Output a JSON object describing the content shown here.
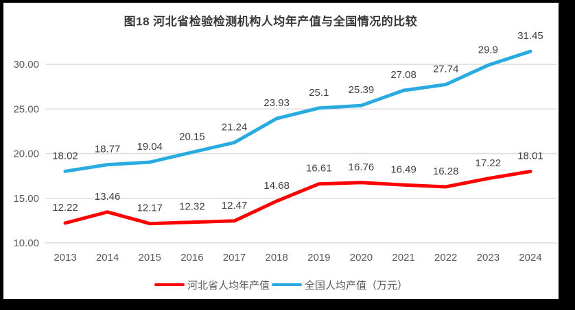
{
  "title": "图18 河北省检验检测机构人均年产值与全国情况的比较",
  "chart_data": {
    "type": "line",
    "categories": [
      "2013",
      "2014",
      "2015",
      "2016",
      "2017",
      "2018",
      "2019",
      "2020",
      "2021",
      "2022",
      "2023",
      "2024"
    ],
    "series": [
      {
        "name": "河北省人均年产值",
        "color": "#FF0000",
        "values": [
          12.22,
          13.46,
          12.17,
          12.32,
          12.47,
          14.68,
          16.61,
          16.76,
          16.49,
          16.28,
          17.22,
          18.01
        ]
      },
      {
        "name": "全国人均产值（万元）",
        "color": "#29ABE2",
        "values": [
          18.02,
          18.77,
          19.04,
          20.15,
          21.24,
          23.93,
          25.1,
          25.39,
          27.08,
          27.74,
          29.9,
          31.45
        ]
      }
    ],
    "y_tick_labels": [
      "30.00",
      "25.00",
      "20.00",
      "15.00",
      "10.00"
    ],
    "y_tick_values": [
      30,
      25,
      20,
      15,
      10
    ],
    "ylim": [
      10,
      30
    ],
    "grid": true,
    "data_labels": true,
    "legend_position": "bottom"
  },
  "colors": {
    "frame": "#000000",
    "canvas": "#FFFFFF",
    "gridline": "#DCDCDC",
    "axis_text": "#595959",
    "data_label_text": "#404040",
    "title_text": "#383838"
  }
}
